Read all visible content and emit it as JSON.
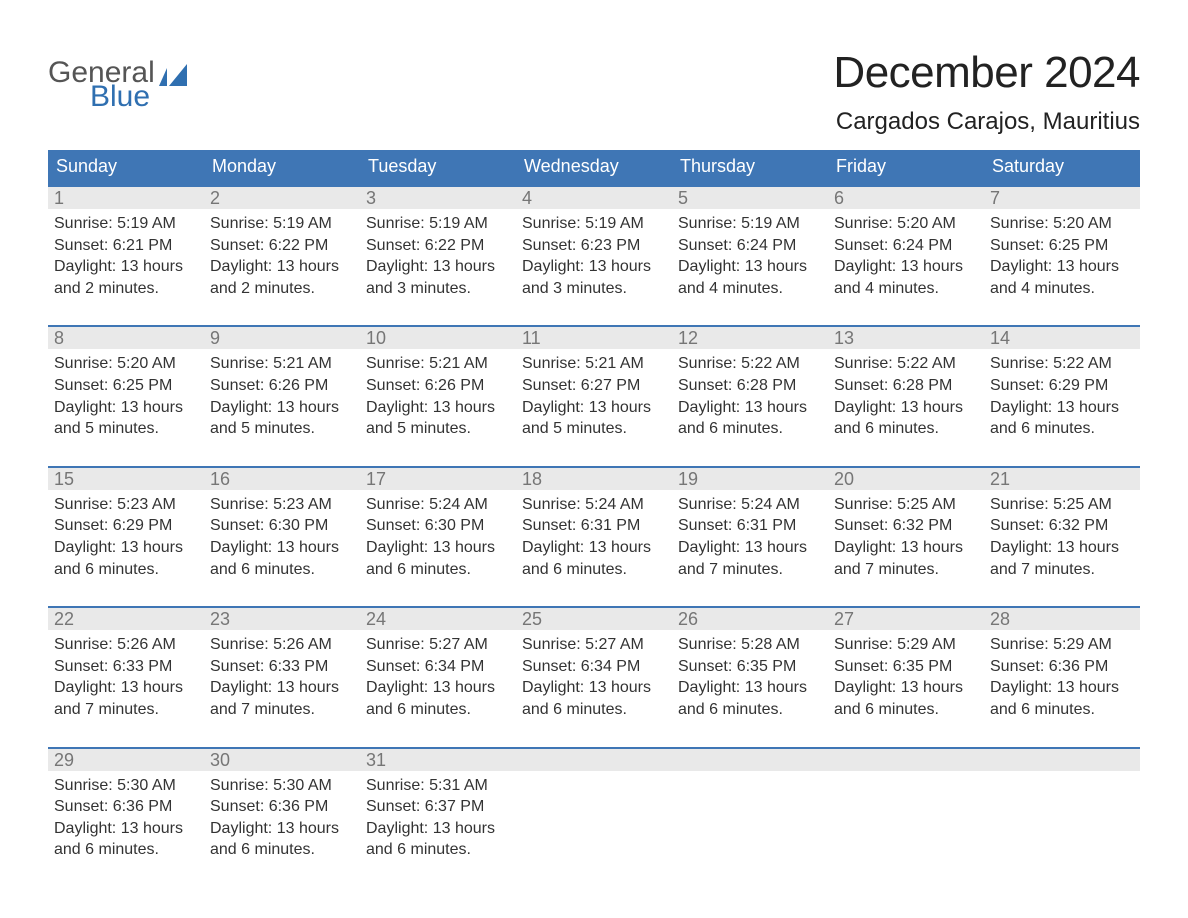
{
  "brand": {
    "text1": "General",
    "text2": "Blue",
    "icon_color": "#2f6fb0",
    "text1_color": "#555555",
    "text2_color": "#2f6fb0"
  },
  "header": {
    "month_title": "December 2024",
    "location": "Cargados Carajos, Mauritius",
    "title_color": "#222222",
    "title_fontsize": 44,
    "location_fontsize": 24
  },
  "calendar": {
    "header_bg": "#3f76b5",
    "header_fg": "#ffffff",
    "week_border_color": "#3f76b5",
    "daynum_bg": "#e9e9e9",
    "daynum_color": "#767676",
    "body_text_color": "#333333",
    "body_fontsize": 16,
    "days_of_week": [
      "Sunday",
      "Monday",
      "Tuesday",
      "Wednesday",
      "Thursday",
      "Friday",
      "Saturday"
    ],
    "labels": {
      "sunrise_prefix": "Sunrise: ",
      "sunset_prefix": "Sunset: ",
      "daylight_prefix": "Daylight: "
    },
    "weeks": [
      [
        {
          "day": 1,
          "sunrise": "5:19 AM",
          "sunset": "6:21 PM",
          "daylight": "13 hours and 2 minutes."
        },
        {
          "day": 2,
          "sunrise": "5:19 AM",
          "sunset": "6:22 PM",
          "daylight": "13 hours and 2 minutes."
        },
        {
          "day": 3,
          "sunrise": "5:19 AM",
          "sunset": "6:22 PM",
          "daylight": "13 hours and 3 minutes."
        },
        {
          "day": 4,
          "sunrise": "5:19 AM",
          "sunset": "6:23 PM",
          "daylight": "13 hours and 3 minutes."
        },
        {
          "day": 5,
          "sunrise": "5:19 AM",
          "sunset": "6:24 PM",
          "daylight": "13 hours and 4 minutes."
        },
        {
          "day": 6,
          "sunrise": "5:20 AM",
          "sunset": "6:24 PM",
          "daylight": "13 hours and 4 minutes."
        },
        {
          "day": 7,
          "sunrise": "5:20 AM",
          "sunset": "6:25 PM",
          "daylight": "13 hours and 4 minutes."
        }
      ],
      [
        {
          "day": 8,
          "sunrise": "5:20 AM",
          "sunset": "6:25 PM",
          "daylight": "13 hours and 5 minutes."
        },
        {
          "day": 9,
          "sunrise": "5:21 AM",
          "sunset": "6:26 PM",
          "daylight": "13 hours and 5 minutes."
        },
        {
          "day": 10,
          "sunrise": "5:21 AM",
          "sunset": "6:26 PM",
          "daylight": "13 hours and 5 minutes."
        },
        {
          "day": 11,
          "sunrise": "5:21 AM",
          "sunset": "6:27 PM",
          "daylight": "13 hours and 5 minutes."
        },
        {
          "day": 12,
          "sunrise": "5:22 AM",
          "sunset": "6:28 PM",
          "daylight": "13 hours and 6 minutes."
        },
        {
          "day": 13,
          "sunrise": "5:22 AM",
          "sunset": "6:28 PM",
          "daylight": "13 hours and 6 minutes."
        },
        {
          "day": 14,
          "sunrise": "5:22 AM",
          "sunset": "6:29 PM",
          "daylight": "13 hours and 6 minutes."
        }
      ],
      [
        {
          "day": 15,
          "sunrise": "5:23 AM",
          "sunset": "6:29 PM",
          "daylight": "13 hours and 6 minutes."
        },
        {
          "day": 16,
          "sunrise": "5:23 AM",
          "sunset": "6:30 PM",
          "daylight": "13 hours and 6 minutes."
        },
        {
          "day": 17,
          "sunrise": "5:24 AM",
          "sunset": "6:30 PM",
          "daylight": "13 hours and 6 minutes."
        },
        {
          "day": 18,
          "sunrise": "5:24 AM",
          "sunset": "6:31 PM",
          "daylight": "13 hours and 6 minutes."
        },
        {
          "day": 19,
          "sunrise": "5:24 AM",
          "sunset": "6:31 PM",
          "daylight": "13 hours and 7 minutes."
        },
        {
          "day": 20,
          "sunrise": "5:25 AM",
          "sunset": "6:32 PM",
          "daylight": "13 hours and 7 minutes."
        },
        {
          "day": 21,
          "sunrise": "5:25 AM",
          "sunset": "6:32 PM",
          "daylight": "13 hours and 7 minutes."
        }
      ],
      [
        {
          "day": 22,
          "sunrise": "5:26 AM",
          "sunset": "6:33 PM",
          "daylight": "13 hours and 7 minutes."
        },
        {
          "day": 23,
          "sunrise": "5:26 AM",
          "sunset": "6:33 PM",
          "daylight": "13 hours and 7 minutes."
        },
        {
          "day": 24,
          "sunrise": "5:27 AM",
          "sunset": "6:34 PM",
          "daylight": "13 hours and 6 minutes."
        },
        {
          "day": 25,
          "sunrise": "5:27 AM",
          "sunset": "6:34 PM",
          "daylight": "13 hours and 6 minutes."
        },
        {
          "day": 26,
          "sunrise": "5:28 AM",
          "sunset": "6:35 PM",
          "daylight": "13 hours and 6 minutes."
        },
        {
          "day": 27,
          "sunrise": "5:29 AM",
          "sunset": "6:35 PM",
          "daylight": "13 hours and 6 minutes."
        },
        {
          "day": 28,
          "sunrise": "5:29 AM",
          "sunset": "6:36 PM",
          "daylight": "13 hours and 6 minutes."
        }
      ],
      [
        {
          "day": 29,
          "sunrise": "5:30 AM",
          "sunset": "6:36 PM",
          "daylight": "13 hours and 6 minutes."
        },
        {
          "day": 30,
          "sunrise": "5:30 AM",
          "sunset": "6:36 PM",
          "daylight": "13 hours and 6 minutes."
        },
        {
          "day": 31,
          "sunrise": "5:31 AM",
          "sunset": "6:37 PM",
          "daylight": "13 hours and 6 minutes."
        },
        null,
        null,
        null,
        null
      ]
    ]
  }
}
